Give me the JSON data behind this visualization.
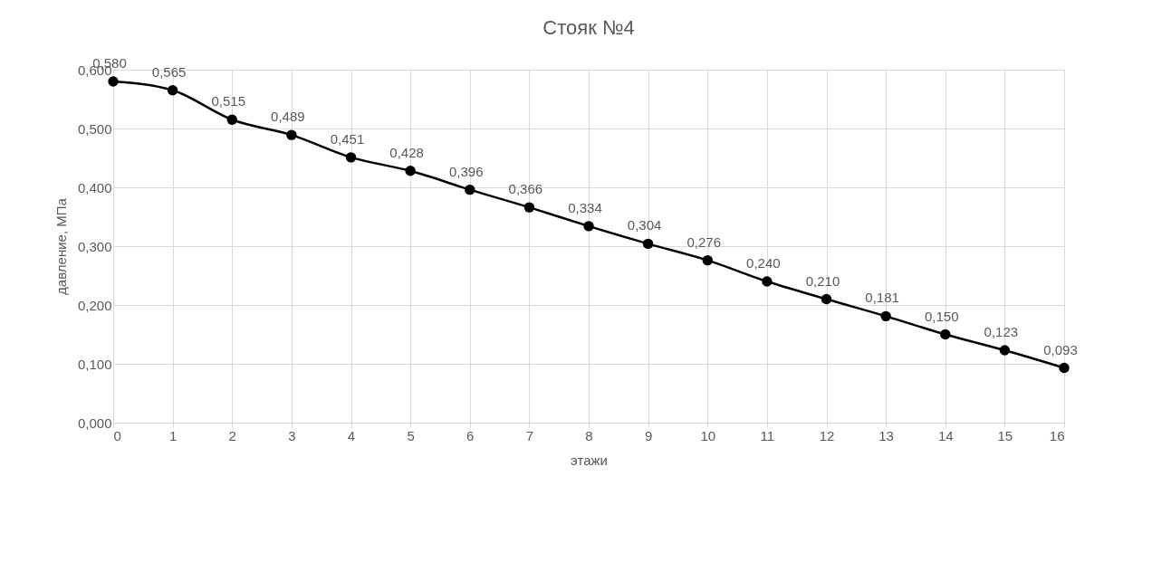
{
  "chart_data": {
    "type": "line",
    "title": "Стояк №4",
    "xlabel": "этажи",
    "ylabel": "давление, МПа",
    "x": [
      0,
      1,
      2,
      3,
      4,
      5,
      6,
      7,
      8,
      9,
      10,
      11,
      12,
      13,
      14,
      15,
      16
    ],
    "series": [
      {
        "color": "#000000",
        "values": [
          0.58,
          0.565,
          0.515,
          0.489,
          0.451,
          0.428,
          0.396,
          0.366,
          0.334,
          0.304,
          0.276,
          0.24,
          0.21,
          0.181,
          0.15,
          0.123,
          0.093
        ],
        "value_labels": [
          "0,580",
          "0,565",
          "0,515",
          "0,489",
          "0,451",
          "0,428",
          "0,396",
          "0,366",
          "0,334",
          "0,304",
          "0,276",
          "0,240",
          "0,210",
          "0,181",
          "0,150",
          "0,123",
          "0,093"
        ]
      }
    ],
    "xlim": [
      0,
      16
    ],
    "xticks": [
      0,
      1,
      2,
      3,
      4,
      5,
      6,
      7,
      8,
      9,
      10,
      11,
      12,
      13,
      14,
      15,
      16
    ],
    "ylim": [
      0,
      0.6
    ],
    "yticks": [
      {
        "value": 0,
        "label": "0,000"
      },
      {
        "value": 0.1,
        "label": "0,100"
      },
      {
        "value": 0.2,
        "label": "0,200"
      },
      {
        "value": 0.3,
        "label": "0,300"
      },
      {
        "value": 0.4,
        "label": "0,400"
      },
      {
        "value": 0.5,
        "label": "0,500"
      },
      {
        "value": 0.6,
        "label": "0,600"
      }
    ],
    "grid": true,
    "marker": "circle",
    "line_style": "solid",
    "legend": false
  }
}
